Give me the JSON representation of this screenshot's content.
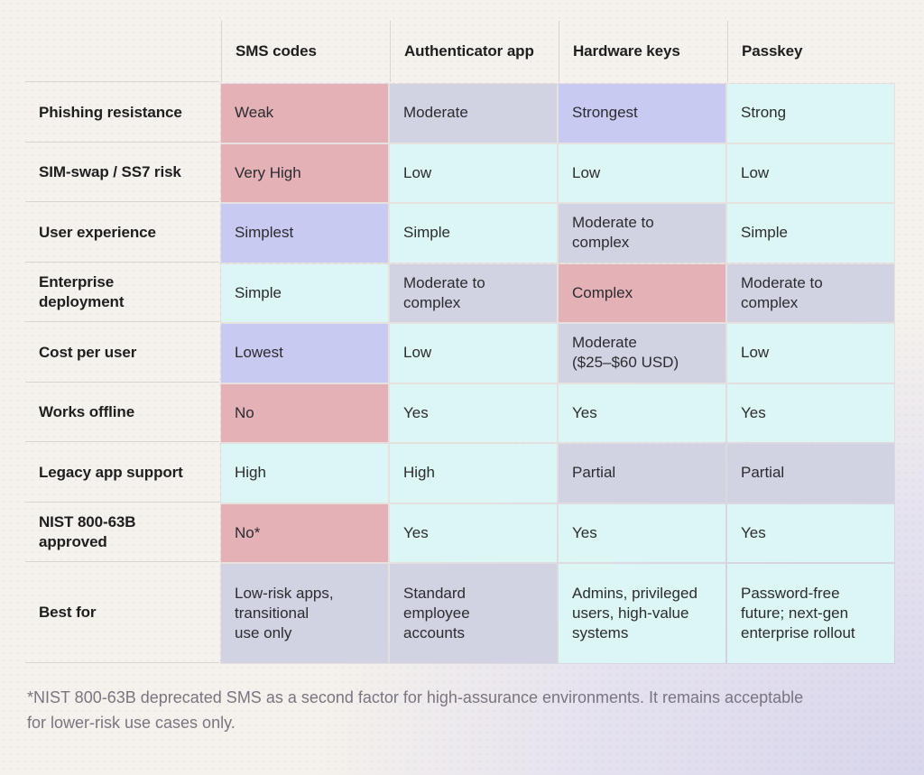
{
  "palette": {
    "bad": "#E4B1B7",
    "best": "#C9CAF2",
    "good": "#DCF6F5",
    "neutral": "#D2D3E2",
    "page_background": "#F5F1EC",
    "page_accent": "#D8D5EB",
    "separator_line": "#D9D4CE",
    "label_text": "#1E1E1E",
    "cell_text": "#2B2B30",
    "footnote_text": "#7B7480"
  },
  "chart_data": {
    "type": "table",
    "columns": [
      "SMS codes",
      "Authenticator app",
      "Hardware keys",
      "Passkey"
    ],
    "tone_legend": {
      "bad": "pink (weak / negative)",
      "best": "lavender (best in row)",
      "good": "cyan (positive)",
      "neutral": "gray-lavender (middling)"
    },
    "rows": [
      {
        "label": "Phishing resistance",
        "cells": [
          {
            "text": "Weak",
            "tone": "bad"
          },
          {
            "text": "Moderate",
            "tone": "neutral"
          },
          {
            "text": "Strongest",
            "tone": "best"
          },
          {
            "text": "Strong",
            "tone": "good"
          }
        ]
      },
      {
        "label": "SIM-swap / SS7 risk",
        "cells": [
          {
            "text": "Very High",
            "tone": "bad"
          },
          {
            "text": "Low",
            "tone": "good"
          },
          {
            "text": "Low",
            "tone": "good"
          },
          {
            "text": "Low",
            "tone": "good"
          }
        ]
      },
      {
        "label": "User experience",
        "cells": [
          {
            "text": "Simplest",
            "tone": "best"
          },
          {
            "text": "Simple",
            "tone": "good"
          },
          {
            "text": "Moderate to\ncomplex",
            "tone": "neutral"
          },
          {
            "text": "Simple",
            "tone": "good"
          }
        ]
      },
      {
        "label": "Enterprise\ndeployment",
        "cells": [
          {
            "text": "Simple",
            "tone": "good"
          },
          {
            "text": "Moderate to\ncomplex",
            "tone": "neutral"
          },
          {
            "text": "Complex",
            "tone": "bad"
          },
          {
            "text": "Moderate to\ncomplex",
            "tone": "neutral"
          }
        ]
      },
      {
        "label": "Cost per user",
        "cells": [
          {
            "text": "Lowest",
            "tone": "best"
          },
          {
            "text": "Low",
            "tone": "good"
          },
          {
            "text": "Moderate\n($25–$60 USD)",
            "tone": "neutral"
          },
          {
            "text": "Low",
            "tone": "good"
          }
        ]
      },
      {
        "label": "Works offline",
        "cells": [
          {
            "text": "No",
            "tone": "bad"
          },
          {
            "text": "Yes",
            "tone": "good"
          },
          {
            "text": "Yes",
            "tone": "good"
          },
          {
            "text": "Yes",
            "tone": "good"
          }
        ]
      },
      {
        "label": "Legacy app support",
        "cells": [
          {
            "text": "High",
            "tone": "good"
          },
          {
            "text": "High",
            "tone": "good"
          },
          {
            "text": "Partial",
            "tone": "neutral"
          },
          {
            "text": "Partial",
            "tone": "neutral"
          }
        ]
      },
      {
        "label": "NIST 800-63B\napproved",
        "cells": [
          {
            "text": "No*",
            "tone": "bad"
          },
          {
            "text": "Yes",
            "tone": "good"
          },
          {
            "text": "Yes",
            "tone": "good"
          },
          {
            "text": "Yes",
            "tone": "good"
          }
        ]
      },
      {
        "label": "Best for",
        "cells": [
          {
            "text": "Low-risk apps,\ntransitional\nuse only",
            "tone": "neutral"
          },
          {
            "text": "Standard\nemployee\naccounts",
            "tone": "neutral"
          },
          {
            "text": "Admins, privileged\nusers, high-value\nsystems",
            "tone": "good"
          },
          {
            "text": "Password-free\nfuture; next-gen\nenterprise rollout",
            "tone": "good"
          }
        ]
      }
    ],
    "footnote": "*NIST 800-63B deprecated SMS as a second factor for high-assurance environments. It remains acceptable\nfor lower-risk use cases only."
  }
}
